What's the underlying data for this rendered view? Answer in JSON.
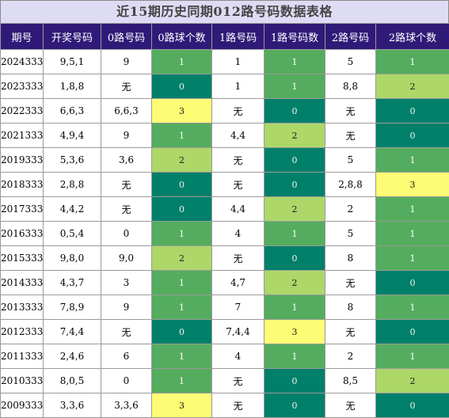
{
  "title": "近15期历史同期012路号码数据表格",
  "columns": [
    "期号",
    "开奖号码",
    "0路号码",
    "0路球个数",
    "1路号码",
    "1路号码数",
    "2路号码",
    "2路球个数"
  ],
  "rows": [
    {
      "issue": "2024333",
      "draw": "9,5,1",
      "r0": "9",
      "c0": 1,
      "r1": "1",
      "c1": 1,
      "r2": "5",
      "c2": 1
    },
    {
      "issue": "2023333",
      "draw": "1,8,8",
      "r0": "无",
      "c0": 0,
      "r1": "1",
      "c1": 1,
      "r2": "8,8",
      "c2": 2
    },
    {
      "issue": "2022333",
      "draw": "6,6,3",
      "r0": "6,6,3",
      "c0": 3,
      "r1": "无",
      "c1": 0,
      "r2": "无",
      "c2": 0
    },
    {
      "issue": "2021333",
      "draw": "4,9,4",
      "r0": "9",
      "c0": 1,
      "r1": "4,4",
      "c1": 2,
      "r2": "无",
      "c2": 0
    },
    {
      "issue": "2019333",
      "draw": "5,3,6",
      "r0": "3,6",
      "c0": 2,
      "r1": "无",
      "c1": 0,
      "r2": "5",
      "c2": 1
    },
    {
      "issue": "2018333",
      "draw": "2,8,8",
      "r0": "无",
      "c0": 0,
      "r1": "无",
      "c1": 0,
      "r2": "2,8,8",
      "c2": 3
    },
    {
      "issue": "2017333",
      "draw": "4,4,2",
      "r0": "无",
      "c0": 0,
      "r1": "4,4",
      "c1": 2,
      "r2": "2",
      "c2": 1
    },
    {
      "issue": "2016333",
      "draw": "0,5,4",
      "r0": "0",
      "c0": 1,
      "r1": "4",
      "c1": 1,
      "r2": "5",
      "c2": 1
    },
    {
      "issue": "2015333",
      "draw": "9,8,0",
      "r0": "9,0",
      "c0": 2,
      "r1": "无",
      "c1": 0,
      "r2": "8",
      "c2": 1
    },
    {
      "issue": "2014333",
      "draw": "4,3,7",
      "r0": "3",
      "c0": 1,
      "r1": "4,7",
      "c1": 2,
      "r2": "无",
      "c2": 0
    },
    {
      "issue": "2013333",
      "draw": "7,8,9",
      "r0": "9",
      "c0": 1,
      "r1": "7",
      "c1": 1,
      "r2": "8",
      "c2": 1
    },
    {
      "issue": "2012333",
      "draw": "7,4,4",
      "r0": "无",
      "c0": 0,
      "r1": "7,4,4",
      "c1": 3,
      "r2": "无",
      "c2": 0
    },
    {
      "issue": "2011333",
      "draw": "2,4,6",
      "r0": "6",
      "c0": 1,
      "r1": "4",
      "c1": 1,
      "r2": "2",
      "c2": 1
    },
    {
      "issue": "2010333",
      "draw": "8,0,5",
      "r0": "0",
      "c0": 1,
      "r1": "无",
      "c1": 0,
      "r2": "8,5",
      "c2": 2
    },
    {
      "issue": "2009333",
      "draw": "3,3,6",
      "r0": "3,3,6",
      "c0": 3,
      "r1": "无",
      "c1": 0,
      "r2": "无",
      "c2": 0
    }
  ]
}
